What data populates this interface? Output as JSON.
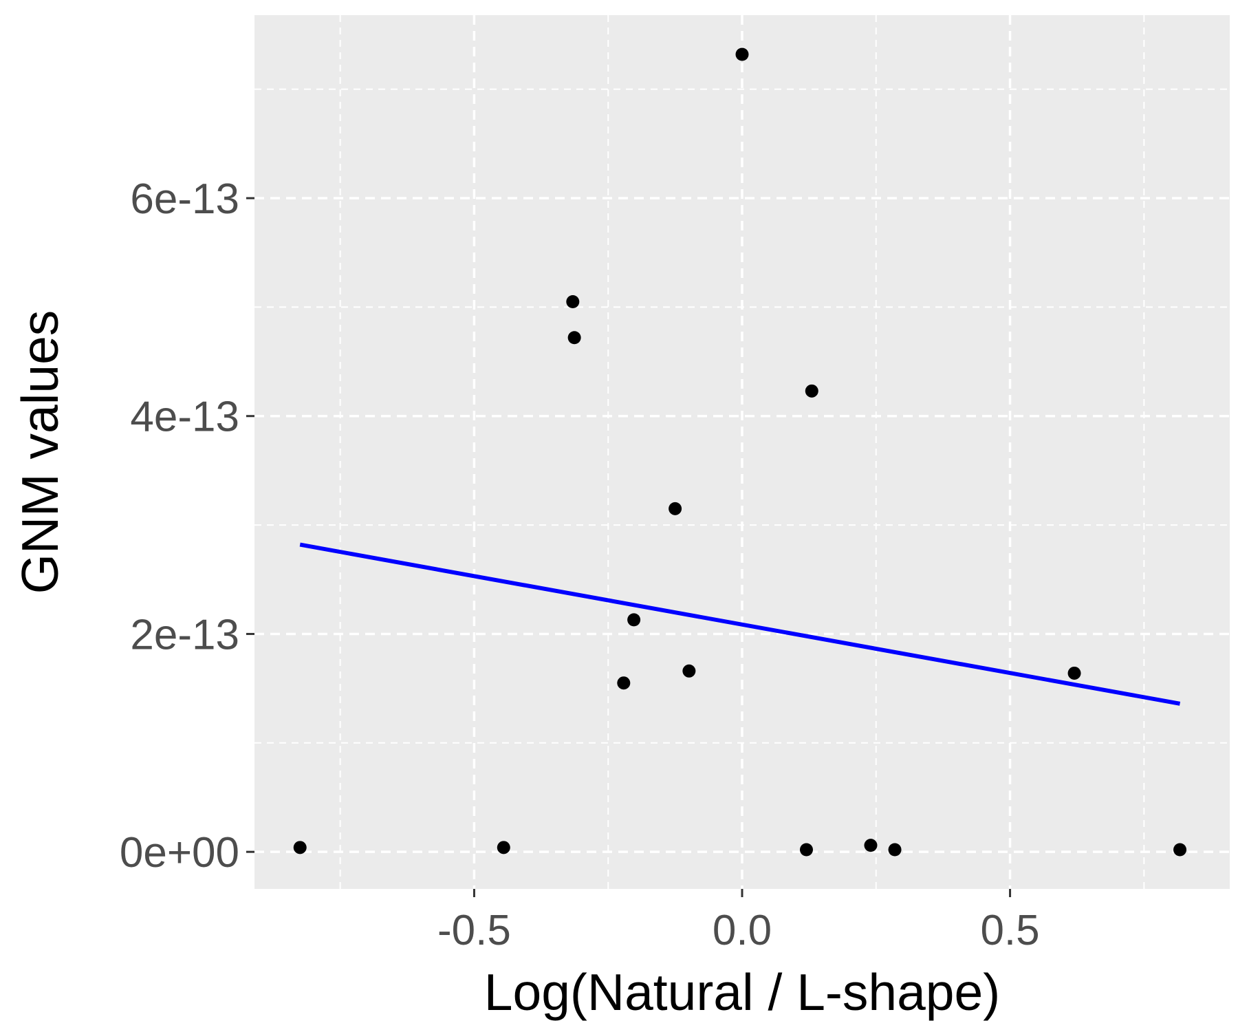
{
  "chart_data": {
    "type": "scatter",
    "title": "",
    "xlabel": "Log(Natural / L-shape)",
    "ylabel": "GNM values",
    "xlim": [
      -0.91,
      0.91
    ],
    "ylim": [
      -3.4e-14,
      7.68e-13
    ],
    "x_ticks": [
      {
        "value": -0.5,
        "label": "-0.5"
      },
      {
        "value": 0.0,
        "label": "0.0"
      },
      {
        "value": 0.5,
        "label": "0.5"
      }
    ],
    "y_ticks": [
      {
        "value": 0,
        "label": "0e+00"
      },
      {
        "value": 2e-13,
        "label": "2e-13"
      },
      {
        "value": 4e-13,
        "label": "4e-13"
      },
      {
        "value": 6e-13,
        "label": "6e-13"
      }
    ],
    "x_minor": [
      -0.75,
      -0.25,
      0.25,
      0.75
    ],
    "y_minor": [
      1e-13,
      3e-13,
      5e-13,
      7e-13
    ],
    "grid": true,
    "legend": "none",
    "points": [
      {
        "x": -0.825,
        "y": 4e-15
      },
      {
        "x": -0.445,
        "y": 4e-15
      },
      {
        "x": -0.316,
        "y": 5.05e-13
      },
      {
        "x": -0.313,
        "y": 4.72e-13
      },
      {
        "x": -0.221,
        "y": 1.55e-13
      },
      {
        "x": -0.202,
        "y": 2.13e-13
      },
      {
        "x": -0.125,
        "y": 3.15e-13
      },
      {
        "x": -0.099,
        "y": 1.66e-13
      },
      {
        "x": 0.0,
        "y": 7.32e-13
      },
      {
        "x": 0.12,
        "y": 2e-15
      },
      {
        "x": 0.13,
        "y": 4.23e-13
      },
      {
        "x": 0.24,
        "y": 6e-15
      },
      {
        "x": 0.285,
        "y": 2e-15
      },
      {
        "x": 0.62,
        "y": 1.64e-13
      },
      {
        "x": 0.817,
        "y": 2e-15
      }
    ],
    "fit_line": {
      "x": [
        -0.825,
        0.817
      ],
      "y": [
        2.82e-13,
        1.36e-13
      ],
      "color": "#0000ff"
    },
    "colors": {
      "panel": "#ebebeb",
      "grid": "#ffffff",
      "points": "#000000",
      "tick_text": "#4d4d4d"
    }
  }
}
